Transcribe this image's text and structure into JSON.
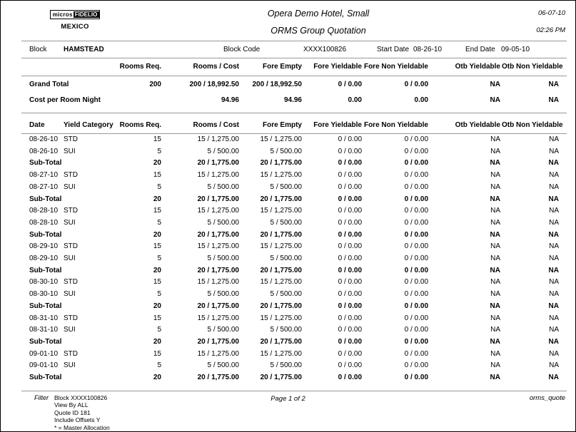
{
  "header": {
    "logo_left": "micros",
    "logo_right": "FIDELIO",
    "logo_region": "MEXICO",
    "hotel_name": "Opera Demo Hotel, Small",
    "report_title": "ORMS Group Quotation",
    "date": "06-07-10",
    "time": "02:26 PM"
  },
  "block_info": {
    "block_label": "Block",
    "block_value": "HAMSTEAD",
    "block_code_label": "Block Code",
    "block_code_value": "XXXX100826",
    "start_date_label": "Start Date",
    "start_date_value": "08-26-10",
    "end_date_label": "End Date",
    "end_date_value": "09-05-10"
  },
  "summary": {
    "columns": [
      "",
      "Rooms Req.",
      "Rooms / Cost",
      "Fore Empty",
      "Fore Yieldable",
      "Fore Non Yieldable",
      "Otb Yieldable",
      "Otb Non Yieldable"
    ],
    "rows": [
      {
        "cells": [
          "Grand Total",
          "200",
          "200 / 18,992.50",
          "200 / 18,992.50",
          "0 / 0.00",
          "0 / 0.00",
          "NA",
          "NA"
        ],
        "bold": true
      },
      {
        "cells": [
          "Cost per Room Night",
          "",
          "94.96",
          "94.96",
          "0.00",
          "0.00",
          "NA",
          "NA"
        ],
        "bold": true
      }
    ]
  },
  "detail": {
    "columns": [
      "Date",
      "Yield Category",
      "Rooms Req.",
      "Rooms / Cost",
      "Fore Empty",
      "Fore Yieldable",
      "Fore Non Yieldable",
      "Otb Yieldable",
      "Otb Non Yieldable"
    ],
    "rows": [
      {
        "cells": [
          "08-26-10",
          "STD",
          "15",
          "15 / 1,275.00",
          "15 / 1,275.00",
          "0 / 0.00",
          "0 / 0.00",
          "NA",
          "NA"
        ],
        "bold": false
      },
      {
        "cells": [
          "08-26-10",
          "SUI",
          "5",
          "5 / 500.00",
          "5 / 500.00",
          "0 / 0.00",
          "0 / 0.00",
          "NA",
          "NA"
        ],
        "bold": false
      },
      {
        "cells": [
          "Sub-Total",
          "",
          "20",
          "20 / 1,775.00",
          "20 / 1,775.00",
          "0 / 0.00",
          "0 / 0.00",
          "NA",
          "NA"
        ],
        "bold": true
      },
      {
        "cells": [
          "08-27-10",
          "STD",
          "15",
          "15 / 1,275.00",
          "15 / 1,275.00",
          "0 / 0.00",
          "0 / 0.00",
          "NA",
          "NA"
        ],
        "bold": false
      },
      {
        "cells": [
          "08-27-10",
          "SUI",
          "5",
          "5 / 500.00",
          "5 / 500.00",
          "0 / 0.00",
          "0 / 0.00",
          "NA",
          "NA"
        ],
        "bold": false
      },
      {
        "cells": [
          "Sub-Total",
          "",
          "20",
          "20 / 1,775.00",
          "20 / 1,775.00",
          "0 / 0.00",
          "0 / 0.00",
          "NA",
          "NA"
        ],
        "bold": true
      },
      {
        "cells": [
          "08-28-10",
          "STD",
          "15",
          "15 / 1,275.00",
          "15 / 1,275.00",
          "0 / 0.00",
          "0 / 0.00",
          "NA",
          "NA"
        ],
        "bold": false
      },
      {
        "cells": [
          "08-28-10",
          "SUI",
          "5",
          "5 / 500.00",
          "5 / 500.00",
          "0 / 0.00",
          "0 / 0.00",
          "NA",
          "NA"
        ],
        "bold": false
      },
      {
        "cells": [
          "Sub-Total",
          "",
          "20",
          "20 / 1,775.00",
          "20 / 1,775.00",
          "0 / 0.00",
          "0 / 0.00",
          "NA",
          "NA"
        ],
        "bold": true
      },
      {
        "cells": [
          "08-29-10",
          "STD",
          "15",
          "15 / 1,275.00",
          "15 / 1,275.00",
          "0 / 0.00",
          "0 / 0.00",
          "NA",
          "NA"
        ],
        "bold": false
      },
      {
        "cells": [
          "08-29-10",
          "SUI",
          "5",
          "5 / 500.00",
          "5 / 500.00",
          "0 / 0.00",
          "0 / 0.00",
          "NA",
          "NA"
        ],
        "bold": false
      },
      {
        "cells": [
          "Sub-Total",
          "",
          "20",
          "20 / 1,775.00",
          "20 / 1,775.00",
          "0 / 0.00",
          "0 / 0.00",
          "NA",
          "NA"
        ],
        "bold": true
      },
      {
        "cells": [
          "08-30-10",
          "STD",
          "15",
          "15 / 1,275.00",
          "15 / 1,275.00",
          "0 / 0.00",
          "0 / 0.00",
          "NA",
          "NA"
        ],
        "bold": false
      },
      {
        "cells": [
          "08-30-10",
          "SUI",
          "5",
          "5 / 500.00",
          "5 / 500.00",
          "0 / 0.00",
          "0 / 0.00",
          "NA",
          "NA"
        ],
        "bold": false
      },
      {
        "cells": [
          "Sub-Total",
          "",
          "20",
          "20 / 1,775.00",
          "20 / 1,775.00",
          "0 / 0.00",
          "0 / 0.00",
          "NA",
          "NA"
        ],
        "bold": true
      },
      {
        "cells": [
          "08-31-10",
          "STD",
          "15",
          "15 / 1,275.00",
          "15 / 1,275.00",
          "0 / 0.00",
          "0 / 0.00",
          "NA",
          "NA"
        ],
        "bold": false
      },
      {
        "cells": [
          "08-31-10",
          "SUI",
          "5",
          "5 / 500.00",
          "5 / 500.00",
          "0 / 0.00",
          "0 / 0.00",
          "NA",
          "NA"
        ],
        "bold": false
      },
      {
        "cells": [
          "Sub-Total",
          "",
          "20",
          "20 / 1,775.00",
          "20 / 1,775.00",
          "0 / 0.00",
          "0 / 0.00",
          "NA",
          "NA"
        ],
        "bold": true
      },
      {
        "cells": [
          "09-01-10",
          "STD",
          "15",
          "15 / 1,275.00",
          "15 / 1,275.00",
          "0 / 0.00",
          "0 / 0.00",
          "NA",
          "NA"
        ],
        "bold": false
      },
      {
        "cells": [
          "09-01-10",
          "SUI",
          "5",
          "5 / 500.00",
          "5 / 500.00",
          "0 / 0.00",
          "0 / 0.00",
          "NA",
          "NA"
        ],
        "bold": false
      },
      {
        "cells": [
          "Sub-Total",
          "",
          "20",
          "20 / 1,775.00",
          "20 / 1,775.00",
          "0 / 0.00",
          "0 / 0.00",
          "NA",
          "NA"
        ],
        "bold": true
      }
    ]
  },
  "footer": {
    "filter_label": "Filter",
    "filter_lines": [
      "Block XXXX100826",
      "View By ALL",
      "Quote ID 181",
      "Include Offsets Y",
      "* = Master Allocation"
    ],
    "page_text": "Page 1 of 2",
    "report_name": "orms_quote"
  }
}
